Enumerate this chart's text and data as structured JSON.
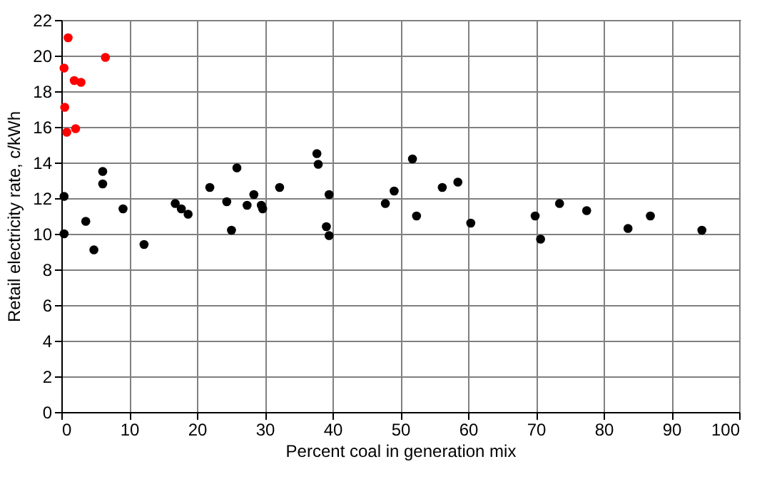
{
  "chart_data": {
    "type": "scatter",
    "xlabel": "Percent coal in generation mix",
    "ylabel": "Retail electricity rate, c/kWh",
    "xlim": [
      0,
      100
    ],
    "ylim": [
      0,
      22
    ],
    "xticks": [
      0,
      10,
      20,
      30,
      40,
      50,
      60,
      70,
      80,
      90,
      100
    ],
    "yticks": [
      0,
      2,
      4,
      6,
      8,
      10,
      12,
      14,
      16,
      18,
      20,
      22
    ],
    "grid": true,
    "marker": "circle",
    "series": [
      {
        "color": "#ff0000",
        "x": [
          1.0,
          0.4,
          6.5,
          1.9,
          2.9,
          0.5,
          0.8,
          2.1
        ],
        "values": [
          21.0,
          19.3,
          19.9,
          18.6,
          18.5,
          17.1,
          15.7,
          15.9
        ]
      },
      {
        "color": "#000000",
        "x": [
          0.4,
          0.4,
          3.6,
          4.8,
          6.1,
          6.1,
          9.1,
          12.2,
          16.8,
          17.7,
          18.7,
          21.9,
          24.4,
          25.1,
          25.9,
          27.4,
          28.4,
          29.5,
          29.7,
          32.2,
          37.7,
          37.9,
          39.5,
          39.1,
          39.5,
          47.8,
          49.1,
          51.8,
          52.4,
          56.2,
          58.5,
          60.4,
          69.9,
          70.7,
          73.5,
          77.5,
          83.6,
          86.9,
          94.5
        ],
        "values": [
          12.1,
          10.0,
          10.7,
          9.1,
          13.5,
          12.8,
          11.4,
          9.4,
          11.7,
          11.4,
          11.1,
          12.6,
          11.8,
          10.2,
          13.7,
          11.6,
          12.2,
          11.6,
          11.4,
          12.6,
          14.5,
          13.9,
          12.2,
          10.4,
          9.9,
          11.7,
          12.4,
          14.2,
          11.0,
          12.6,
          12.9,
          10.6,
          11.0,
          9.7,
          11.7,
          11.3,
          10.3,
          11.0,
          10.2
        ]
      }
    ]
  }
}
